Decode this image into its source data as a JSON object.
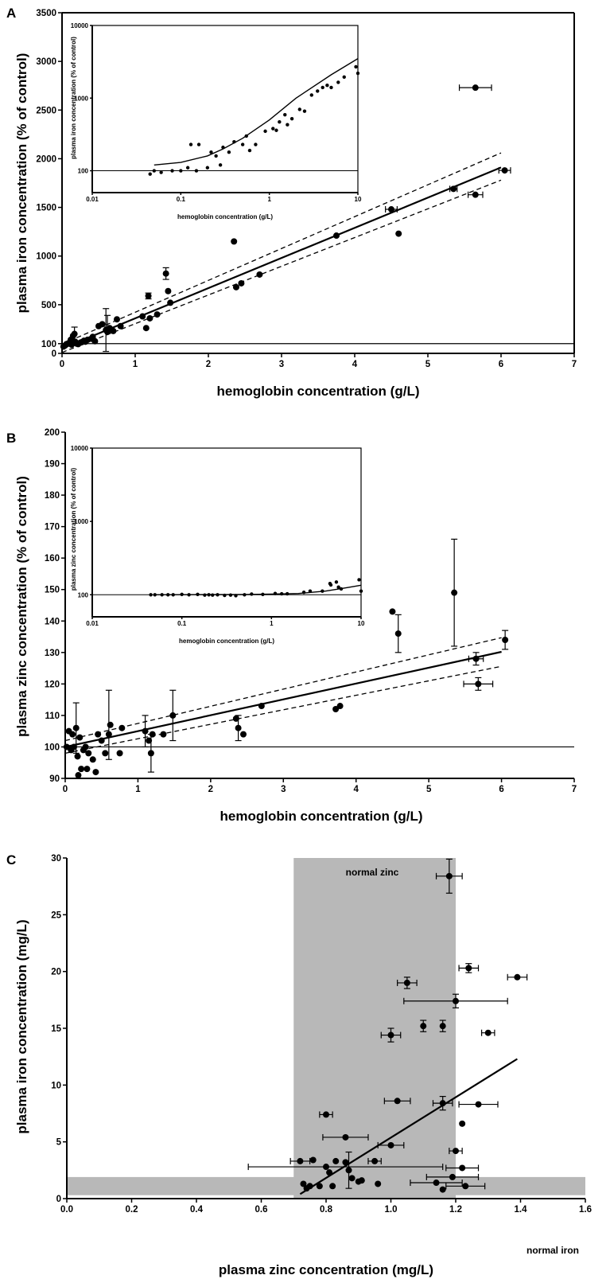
{
  "panels": {
    "A": {
      "letter": "A",
      "xlabel": "hemoglobin concentration (g/L)",
      "ylabel": "plasma iron concentration (% of control)",
      "xticks": [
        "0",
        "1",
        "2",
        "3",
        "4",
        "5",
        "6",
        "7"
      ],
      "yticks": [
        "0",
        "100",
        "500",
        "1000",
        "1500",
        "2000",
        "2500",
        "3000",
        "3500"
      ],
      "inset": {
        "xlabel": "hemoglobin concentration (g/L)",
        "ylabel": "plasma iron concentration (% of control)",
        "xticks": [
          "0.01",
          "0.1",
          "1",
          "10"
        ],
        "yticks": [
          "100",
          "1000",
          "10000"
        ]
      }
    },
    "B": {
      "letter": "B",
      "xlabel": "hemoglobin concentration (g/L)",
      "ylabel": "plasma zinc concentration (% of control)",
      "xticks": [
        "0",
        "1",
        "2",
        "3",
        "4",
        "5",
        "6",
        "7"
      ],
      "yticks": [
        "90",
        "100",
        "110",
        "120",
        "130",
        "140",
        "150",
        "160",
        "170",
        "180",
        "190",
        "200"
      ],
      "inset": {
        "xlabel": "hemoglobin concentration (g/L)",
        "ylabel": "plasma zinc concentration (% of control)",
        "xticks": [
          "0.01",
          "0.1",
          "1",
          "10"
        ],
        "yticks": [
          "100",
          "1000",
          "10000"
        ]
      }
    },
    "C": {
      "letter": "C",
      "xlabel": "plasma zinc concentration (mg/L)",
      "ylabel": "plasma iron concentration (mg/L)",
      "xticks": [
        "0.0",
        "0.2",
        "0.4",
        "0.6",
        "0.8",
        "1.0",
        "1.2",
        "1.4",
        "1.6"
      ],
      "yticks": [
        "0",
        "5",
        "10",
        "15",
        "20",
        "25",
        "30"
      ],
      "band_labels": {
        "zinc": "normal  zinc",
        "iron": "normal iron"
      }
    }
  },
  "colors": {
    "ink": "#000000",
    "band": "#b8b8b8",
    "background": "#ffffff"
  },
  "chart_data": [
    {
      "id": "A",
      "type": "scatter",
      "xlim": [
        0,
        7
      ],
      "ylim": [
        0,
        3500
      ],
      "y_baseline": 100,
      "fit_line": [
        [
          0,
          50
        ],
        [
          6,
          1910
        ]
      ],
      "confidence_upper": [
        [
          0,
          95
        ],
        [
          6,
          2060
        ]
      ],
      "confidence_lower": [
        [
          0,
          10
        ],
        [
          6,
          1780
        ]
      ],
      "points": [
        [
          0.02,
          70
        ],
        [
          0.04,
          80
        ],
        [
          0.06,
          95
        ],
        [
          0.08,
          100
        ],
        [
          0.1,
          110
        ],
        [
          0.12,
          140
        ],
        [
          0.13,
          90
        ],
        [
          0.15,
          180
        ],
        [
          0.17,
          200
        ],
        [
          0.18,
          120
        ],
        [
          0.2,
          100
        ],
        [
          0.22,
          95
        ],
        [
          0.25,
          110
        ],
        [
          0.27,
          115
        ],
        [
          0.3,
          130
        ],
        [
          0.32,
          120
        ],
        [
          0.35,
          140
        ],
        [
          0.4,
          150
        ],
        [
          0.42,
          170
        ],
        [
          0.45,
          125
        ],
        [
          0.5,
          280
        ],
        [
          0.55,
          300
        ],
        [
          0.6,
          240
        ],
        [
          0.62,
          220
        ],
        [
          0.65,
          260
        ],
        [
          0.7,
          230
        ],
        [
          0.75,
          350
        ],
        [
          0.8,
          280
        ],
        [
          1.1,
          380
        ],
        [
          1.15,
          260
        ],
        [
          1.2,
          360
        ],
        [
          1.3,
          400
        ],
        [
          1.42,
          820
        ],
        [
          1.45,
          640
        ],
        [
          1.48,
          520
        ],
        [
          1.18,
          590
        ],
        [
          2.35,
          1150
        ],
        [
          2.38,
          680
        ],
        [
          2.45,
          720
        ],
        [
          2.7,
          810
        ],
        [
          3.75,
          1210
        ],
        [
          4.5,
          1480
        ],
        [
          4.6,
          1230
        ],
        [
          5.35,
          1690
        ],
        [
          5.65,
          1630
        ],
        [
          6.05,
          1880
        ],
        [
          5.65,
          2730
        ]
      ],
      "error_bars": [
        {
          "x": 0.17,
          "y": 200,
          "yerr": 70
        },
        {
          "x": 0.6,
          "y": 240,
          "yerr": 220
        },
        {
          "x": 0.62,
          "y": 330,
          "yerr": 60
        },
        {
          "x": 1.42,
          "y": 820,
          "yerr": 60
        },
        {
          "x": 1.18,
          "y": 590,
          "yerr": 30
        },
        {
          "x": 4.5,
          "y": 1480,
          "xerr": 0.08
        },
        {
          "x": 5.35,
          "y": 1690,
          "xerr": 0.05
        },
        {
          "x": 5.65,
          "y": 1630,
          "xerr": 0.1
        },
        {
          "x": 6.05,
          "y": 1880,
          "xerr": 0.08
        },
        {
          "x": 5.65,
          "y": 2730,
          "xerr": 0.22
        }
      ],
      "inset": {
        "type": "scatter",
        "x_scale": "log",
        "y_scale": "log",
        "xlim": [
          0.01,
          10
        ],
        "ylim": [
          50,
          10000
        ],
        "y_baseline": 100,
        "fit_curve": [
          [
            0.05,
            120
          ],
          [
            0.1,
            130
          ],
          [
            0.2,
            160
          ],
          [
            0.3,
            200
          ],
          [
            0.5,
            280
          ],
          [
            1,
            500
          ],
          [
            2,
            1000
          ],
          [
            5,
            2100
          ],
          [
            10,
            3500
          ]
        ],
        "points": [
          [
            0.045,
            90
          ],
          [
            0.05,
            100
          ],
          [
            0.06,
            95
          ],
          [
            0.08,
            100
          ],
          [
            0.1,
            100
          ],
          [
            0.12,
            110
          ],
          [
            0.15,
            100
          ],
          [
            0.13,
            230
          ],
          [
            0.16,
            230
          ],
          [
            0.2,
            110
          ],
          [
            0.22,
            180
          ],
          [
            0.25,
            160
          ],
          [
            0.28,
            120
          ],
          [
            0.3,
            210
          ],
          [
            0.35,
            180
          ],
          [
            0.4,
            250
          ],
          [
            0.5,
            230
          ],
          [
            0.55,
            300
          ],
          [
            0.6,
            190
          ],
          [
            0.7,
            230
          ],
          [
            0.9,
            350
          ],
          [
            1.1,
            380
          ],
          [
            1.2,
            360
          ],
          [
            1.3,
            470
          ],
          [
            1.5,
            590
          ],
          [
            1.6,
            430
          ],
          [
            1.8,
            520
          ],
          [
            2.2,
            700
          ],
          [
            2.5,
            660
          ],
          [
            3,
            1100
          ],
          [
            3.5,
            1250
          ],
          [
            4,
            1400
          ],
          [
            4.5,
            1500
          ],
          [
            5,
            1400
          ],
          [
            6,
            1650
          ],
          [
            7,
            1950
          ],
          [
            9.5,
            2700
          ],
          [
            10,
            2200
          ]
        ]
      }
    },
    {
      "id": "B",
      "type": "scatter",
      "xlim": [
        0,
        7
      ],
      "ylim": [
        90,
        200
      ],
      "y_baseline": 100,
      "fit_line": [
        [
          0,
          100
        ],
        [
          6,
          130.2
        ]
      ],
      "confidence_upper": [
        [
          0,
          102
        ],
        [
          6,
          134.7
        ]
      ],
      "confidence_lower": [
        [
          0,
          98
        ],
        [
          6,
          125.6
        ]
      ],
      "points": [
        [
          0.02,
          100
        ],
        [
          0.05,
          105
        ],
        [
          0.08,
          99
        ],
        [
          0.1,
          104
        ],
        [
          0.12,
          100
        ],
        [
          0.15,
          106
        ],
        [
          0.17,
          97
        ],
        [
          0.18,
          91
        ],
        [
          0.2,
          103
        ],
        [
          0.22,
          93
        ],
        [
          0.25,
          99
        ],
        [
          0.28,
          100
        ],
        [
          0.3,
          93
        ],
        [
          0.32,
          98
        ],
        [
          0.38,
          96
        ],
        [
          0.42,
          92
        ],
        [
          0.45,
          104
        ],
        [
          0.5,
          102
        ],
        [
          0.55,
          98
        ],
        [
          0.6,
          104
        ],
        [
          0.62,
          107
        ],
        [
          0.75,
          98
        ],
        [
          0.78,
          106
        ],
        [
          1.1,
          105
        ],
        [
          1.15,
          102
        ],
        [
          1.18,
          98
        ],
        [
          1.2,
          104
        ],
        [
          1.35,
          104
        ],
        [
          1.48,
          110
        ],
        [
          2.35,
          109
        ],
        [
          2.38,
          106
        ],
        [
          2.45,
          104
        ],
        [
          2.7,
          113
        ],
        [
          3.72,
          112
        ],
        [
          3.78,
          113
        ],
        [
          4.5,
          143
        ],
        [
          4.58,
          136
        ],
        [
          5.35,
          149
        ],
        [
          5.65,
          128
        ],
        [
          5.68,
          120
        ],
        [
          6.05,
          134
        ]
      ],
      "error_bars": [
        {
          "x": 0.15,
          "y": 106,
          "yerr": 8
        },
        {
          "x": 0.6,
          "y": 107,
          "yerr": 11
        },
        {
          "x": 1.1,
          "y": 105,
          "yerr": 5
        },
        {
          "x": 1.18,
          "y": 98,
          "yerr": 6
        },
        {
          "x": 1.48,
          "y": 110,
          "yerr": 8
        },
        {
          "x": 2.38,
          "y": 106,
          "yerr": 4
        },
        {
          "x": 4.58,
          "y": 136,
          "yerr": 6
        },
        {
          "x": 5.35,
          "y": 149,
          "yerr": 17
        },
        {
          "x": 5.65,
          "y": 128,
          "yerr": 2,
          "xerr": 0.1
        },
        {
          "x": 5.68,
          "y": 120,
          "yerr": 2,
          "xerr": 0.2
        },
        {
          "x": 6.05,
          "y": 134,
          "yerr": 3
        }
      ],
      "inset": {
        "type": "scatter",
        "x_scale": "log",
        "y_scale": "log",
        "xlim": [
          0.01,
          10
        ],
        "ylim": [
          50,
          10000
        ],
        "y_baseline": 100,
        "fit_curve": [
          [
            0.05,
            100
          ],
          [
            0.5,
            101
          ],
          [
            1,
            102
          ],
          [
            2,
            104
          ],
          [
            4,
            112
          ],
          [
            7,
            125
          ],
          [
            10,
            135
          ]
        ],
        "points": [
          [
            0.045,
            100
          ],
          [
            0.05,
            100
          ],
          [
            0.06,
            100
          ],
          [
            0.07,
            100
          ],
          [
            0.08,
            100
          ],
          [
            0.1,
            101
          ],
          [
            0.12,
            100
          ],
          [
            0.15,
            101
          ],
          [
            0.18,
            99
          ],
          [
            0.2,
            100
          ],
          [
            0.22,
            99
          ],
          [
            0.25,
            100
          ],
          [
            0.3,
            98
          ],
          [
            0.35,
            99
          ],
          [
            0.4,
            97
          ],
          [
            0.5,
            100
          ],
          [
            0.6,
            102
          ],
          [
            0.8,
            101
          ],
          [
            1.1,
            104
          ],
          [
            1.3,
            103
          ],
          [
            1.5,
            103
          ],
          [
            2.3,
            108
          ],
          [
            2.7,
            112
          ],
          [
            3.7,
            112
          ],
          [
            4.5,
            142
          ],
          [
            4.6,
            136
          ],
          [
            5.3,
            149
          ],
          [
            5.6,
            127
          ],
          [
            6,
            120
          ],
          [
            9.5,
            160
          ],
          [
            10,
            112
          ]
        ]
      }
    },
    {
      "id": "C",
      "type": "scatter",
      "xlim": [
        0,
        1.6
      ],
      "ylim": [
        0,
        30
      ],
      "normal_zinc_range": [
        0.7,
        1.2
      ],
      "normal_iron_range": [
        0.3,
        1.9
      ],
      "fit_line": [
        [
          0.72,
          0.4
        ],
        [
          1.39,
          12.3
        ]
      ],
      "points": [
        [
          0.72,
          3.3
        ],
        [
          0.73,
          1.3
        ],
        [
          0.74,
          0.9
        ],
        [
          0.75,
          1.1
        ],
        [
          0.76,
          3.4
        ],
        [
          0.78,
          1.1
        ],
        [
          0.8,
          7.4
        ],
        [
          0.8,
          2.8
        ],
        [
          0.81,
          2.3
        ],
        [
          0.82,
          1.1
        ],
        [
          0.83,
          3.3
        ],
        [
          0.86,
          5.4
        ],
        [
          0.86,
          3.2
        ],
        [
          0.87,
          2.5
        ],
        [
          0.88,
          1.8
        ],
        [
          0.9,
          1.5
        ],
        [
          0.91,
          1.6
        ],
        [
          0.95,
          3.3
        ],
        [
          0.96,
          1.3
        ],
        [
          1.0,
          14.4
        ],
        [
          1.0,
          4.7
        ],
        [
          1.02,
          8.6
        ],
        [
          1.05,
          19.0
        ],
        [
          1.1,
          15.2
        ],
        [
          1.14,
          1.4
        ],
        [
          1.16,
          15.2
        ],
        [
          1.16,
          8.4
        ],
        [
          1.16,
          0.8
        ],
        [
          1.18,
          28.4
        ],
        [
          1.19,
          1.9
        ],
        [
          1.2,
          17.4
        ],
        [
          1.2,
          4.2
        ],
        [
          1.22,
          6.6
        ],
        [
          1.22,
          2.7
        ],
        [
          1.23,
          1.1
        ],
        [
          1.24,
          20.3
        ],
        [
          1.27,
          8.3
        ],
        [
          1.3,
          14.6
        ],
        [
          1.39,
          19.5
        ]
      ],
      "error_bars": [
        {
          "x": 1.18,
          "y": 28.4,
          "yerr": 1.5,
          "xerr": 0.04
        },
        {
          "x": 1.24,
          "y": 20.3,
          "xerr": 0.03,
          "yerr": 0.4
        },
        {
          "x": 1.05,
          "y": 19.0,
          "xerr": 0.03,
          "yerr": 0.5
        },
        {
          "x": 1.2,
          "y": 17.4,
          "xerr": 0.16,
          "yerr": 0.6
        },
        {
          "x": 1.39,
          "y": 19.5,
          "xerr": 0.03
        },
        {
          "x": 1.3,
          "y": 14.6,
          "xerr": 0.02
        },
        {
          "x": 1.0,
          "y": 14.4,
          "xerr": 0.03,
          "yerr": 0.6
        },
        {
          "x": 1.1,
          "y": 15.2,
          "yerr": 0.5
        },
        {
          "x": 1.16,
          "y": 15.2,
          "yerr": 0.5
        },
        {
          "x": 1.02,
          "y": 8.6,
          "xerr": 0.04
        },
        {
          "x": 1.16,
          "y": 8.4,
          "xerr": 0.03,
          "yerr": 0.6
        },
        {
          "x": 1.27,
          "y": 8.3,
          "xerr": 0.06
        },
        {
          "x": 0.8,
          "y": 7.4,
          "xerr": 0.02
        },
        {
          "x": 0.86,
          "y": 5.4,
          "xerr": 0.07
        },
        {
          "x": 1.0,
          "y": 4.7,
          "xerr": 0.04
        },
        {
          "x": 1.2,
          "y": 4.2,
          "xerr": 0.02
        },
        {
          "x": 0.72,
          "y": 3.3,
          "xerr": 0.03
        },
        {
          "x": 0.95,
          "y": 3.3,
          "xerr": 0.02
        },
        {
          "x": 0.86,
          "y": 2.8,
          "xerr": 0.3
        },
        {
          "x": 0.87,
          "y": 2.5,
          "yerr": 1.6
        },
        {
          "x": 1.22,
          "y": 2.7,
          "xerr": 0.05
        },
        {
          "x": 1.19,
          "y": 1.9,
          "xerr": 0.08
        },
        {
          "x": 1.14,
          "y": 1.4,
          "xerr": 0.08
        },
        {
          "x": 1.23,
          "y": 1.1,
          "xerr": 0.06
        }
      ]
    }
  ]
}
